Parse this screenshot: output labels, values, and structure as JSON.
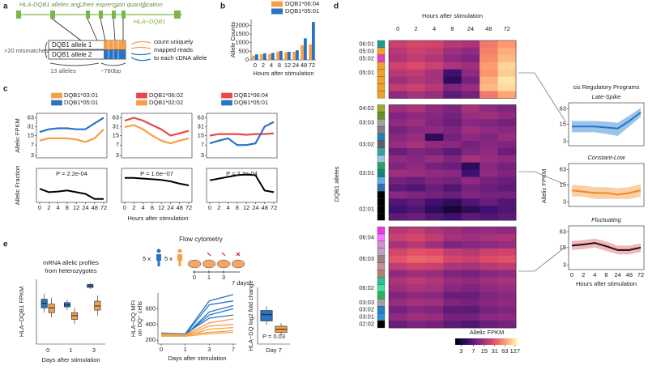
{
  "panel_labels": [
    "a",
    "b",
    "c",
    "d",
    "e"
  ],
  "panel_a": {
    "title": "HLA-DQB1 alleles and their expression quantification",
    "gene_label": "HLA−DQB1",
    "allele_1": "DQB1 allele 1",
    "allele_2": "DQB1 allele 2",
    "mismatches": ">20 mismatches",
    "n_alleles": "13 alleles",
    "length": "~780bp",
    "count_lines": [
      "count uniquely",
      "mapped reads",
      "to each cDNA allele"
    ]
  },
  "panel_c": {
    "xlabel": "Hours after stimulation"
  },
  "panel_e": {
    "flow_title": "Flow cytometry",
    "donor_counts": [
      "5 x",
      "5 x"
    ],
    "timeline": [
      "0",
      "1",
      "3"
    ],
    "end_label": "7 days"
  },
  "chart_data": [
    {
      "type": "bar",
      "ylabel": "Allele Counts",
      "xlabel": "Hours after stimulation",
      "categories": [
        "0",
        "2",
        "4",
        "8",
        "12",
        "24",
        "48",
        "72"
      ],
      "series": [
        {
          "name": "DQB1*06:04",
          "color": "#f5a049",
          "values": [
            250,
            330,
            340,
            480,
            450,
            470,
            850,
            900
          ]
        },
        {
          "name": "DQB1*05:01",
          "color": "#2a73c3",
          "values": [
            320,
            380,
            410,
            520,
            470,
            560,
            1250,
            2200
          ]
        }
      ],
      "ylim": [
        0,
        2350
      ],
      "yticks": [
        0,
        500,
        1000,
        1500,
        2000
      ],
      "legend": "top-right"
    },
    {
      "type": "line",
      "ylabel": "Allelic FPKM",
      "log_y": true,
      "ylim": [
        2.5,
        90
      ],
      "yticks": [
        3,
        7,
        15,
        31,
        63
      ],
      "categories": [
        "0",
        "2",
        "4",
        "8",
        "12",
        "24",
        "48",
        "72"
      ],
      "series": [
        {
          "name": "DQB1*03:01",
          "color": "#f5a049",
          "values": [
            10,
            12,
            12,
            12,
            11,
            9,
            12,
            25
          ]
        },
        {
          "name": "DQB1*05:01",
          "color": "#2a73c3",
          "values": [
            20,
            25,
            27,
            27,
            25,
            25,
            40,
            63
          ]
        }
      ],
      "fraction": {
        "ylabel": "Allelic Fraction",
        "ylim": [
          0,
          1
        ],
        "values": [
          0.4,
          0.3,
          0.32,
          0.35,
          0.3,
          0.25,
          0.1,
          0.1
        ],
        "annotation": "P = 2.2e-04"
      }
    },
    {
      "type": "line",
      "log_y": true,
      "ylim": [
        2.5,
        90
      ],
      "yticks": [
        3,
        7,
        15,
        31,
        63
      ],
      "categories": [
        "0",
        "2",
        "4",
        "8",
        "12",
        "24",
        "48",
        "72"
      ],
      "series": [
        {
          "name": "DQB1*06:02",
          "color": "#e8474b",
          "values": [
            50,
            63,
            50,
            35,
            25,
            15,
            18,
            22
          ]
        },
        {
          "name": "DQB1*02:02",
          "color": "#f5a049",
          "values": [
            30,
            35,
            25,
            15,
            10,
            8,
            10,
            12
          ]
        }
      ],
      "fraction": {
        "ylim": [
          0,
          1
        ],
        "values": [
          0.72,
          0.72,
          0.7,
          0.68,
          0.66,
          0.62,
          0.55,
          0.5
        ],
        "annotation": "P = 1.6e−07"
      }
    },
    {
      "type": "line",
      "log_y": true,
      "ylim": [
        2.5,
        90
      ],
      "yticks": [
        3,
        7,
        15,
        31,
        63
      ],
      "categories": [
        "0",
        "2",
        "4",
        "8",
        "12",
        "24",
        "48",
        "72"
      ],
      "series": [
        {
          "name": "DQB1*06:04",
          "color": "#e8474b",
          "values": [
            15,
            17,
            17,
            17,
            16,
            17,
            17,
            18
          ]
        },
        {
          "name": "DQB1*05:01",
          "color": "#2a73c3",
          "values": [
            8,
            10,
            12,
            7,
            7,
            8,
            31,
            45
          ]
        }
      ],
      "fraction": {
        "ylim": [
          0,
          1
        ],
        "values": [
          0.65,
          0.7,
          0.75,
          0.8,
          0.82,
          0.8,
          0.35,
          0.3
        ],
        "annotation": "P = 2.3e-04"
      }
    },
    {
      "type": "heatmap",
      "xlabel": "Hours after stimulation",
      "ylabel": "DQB1 alleles",
      "columns": [
        "0",
        "2",
        "4",
        "8",
        "24",
        "48",
        "72"
      ],
      "colorbar": {
        "label": "Allelic FPKM",
        "ticks": [
          3,
          7,
          15,
          31,
          63,
          127
        ],
        "lim": [
          2,
          160
        ],
        "log": true,
        "colors": [
          "#000004",
          "#3b0f70",
          "#8c2981",
          "#de4968",
          "#fe9f6d",
          "#fcfdbf"
        ]
      },
      "blocks": [
        {
          "row_labels": [
            "06:01",
            "05:03",
            "05:02",
            null,
            "05:01",
            null,
            null,
            null
          ],
          "row_colors": [
            "#1a9e8f",
            "#f0a030",
            "#e040c0",
            "#f0a030",
            "#f0a030",
            "#f0a030",
            "#f0a030",
            "#f0a030"
          ],
          "z": [
            [
              22,
              26,
              24,
              18,
              16,
              45,
              63
            ],
            [
              18,
              22,
              20,
              14,
              12,
              50,
              75
            ],
            [
              16,
              20,
              17,
              12,
              10,
              55,
              85
            ],
            [
              24,
              27,
              22,
              16,
              14,
              65,
              110
            ],
            [
              18,
              20,
              15,
              5,
              12,
              60,
              100
            ],
            [
              14,
              17,
              15,
              4,
              9,
              75,
              127
            ],
            [
              20,
              23,
              18,
              10,
              13,
              85,
              115
            ],
            [
              12,
              15,
              13,
              7,
              9,
              45,
              70
            ]
          ]
        },
        {
          "row_labels": [
            "04:02",
            null,
            "03:03",
            null,
            null,
            "03:02",
            null,
            null,
            null,
            "03:01",
            null,
            null,
            null,
            null,
            "02:01",
            null
          ],
          "row_colors": [
            "#9aa830",
            "#6b8e23",
            "#a0a0a0",
            "#808080",
            "#2080c0",
            "#606060",
            "#3aa0a0",
            "#90c8e0",
            "#2aa060",
            "#1a8080",
            "#5ab0e0",
            "#3070b0",
            "#000000",
            "#000000",
            "#000000",
            "#000000"
          ],
          "z": [
            [
              14,
              16,
              12,
              10,
              15,
              12,
              10
            ],
            [
              10,
              12,
              11,
              9,
              13,
              14,
              12
            ],
            [
              12,
              14,
              10,
              8,
              11,
              10,
              9
            ],
            [
              9,
              11,
              12,
              10,
              14,
              12,
              11
            ],
            [
              11,
              13,
              4,
              9,
              12,
              10,
              13
            ],
            [
              13,
              15,
              12,
              11,
              9,
              11,
              10
            ],
            [
              8,
              10,
              9,
              7,
              10,
              12,
              8
            ],
            [
              12,
              11,
              13,
              10,
              15,
              13,
              12
            ],
            [
              10,
              12,
              9,
              8,
              4,
              11,
              9
            ],
            [
              14,
              13,
              12,
              11,
              5,
              12,
              10
            ],
            [
              9,
              8,
              10,
              9,
              12,
              9,
              8
            ],
            [
              7,
              6,
              8,
              6,
              9,
              8,
              7
            ],
            [
              11,
              10,
              9,
              8,
              10,
              9,
              9
            ],
            [
              6,
              7,
              5,
              4,
              6,
              8,
              6
            ],
            [
              5,
              6,
              4,
              3,
              4,
              5,
              6
            ],
            [
              7,
              8,
              6,
              5,
              7,
              6,
              7
            ]
          ]
        },
        {
          "row_labels": [
            null,
            "06:04",
            null,
            null,
            "06:03",
            null,
            null,
            null,
            "06:02",
            null,
            "03:03",
            "03:02",
            "03:01",
            "02:02"
          ],
          "row_colors": [
            "#e040e0",
            "#ff70ff",
            "#d090d0",
            "#c0a0c0",
            "#a08080",
            "#c09090",
            "#b08070",
            "#30c090",
            "#40e0a0",
            "#30b060",
            "#a0a0a0",
            "#2080c0",
            "#3090d0",
            "#000000"
          ],
          "z": [
            [
              18,
              20,
              16,
              14,
              12,
              13,
              12
            ],
            [
              22,
              25,
              20,
              15,
              14,
              15,
              16
            ],
            [
              15,
              18,
              14,
              10,
              11,
              12,
              13
            ],
            [
              25,
              30,
              28,
              20,
              18,
              22,
              24
            ],
            [
              31,
              38,
              35,
              25,
              22,
              28,
              30
            ],
            [
              20,
              24,
              22,
              16,
              15,
              18,
              20
            ],
            [
              12,
              14,
              13,
              10,
              9,
              11,
              12
            ],
            [
              16,
              19,
              17,
              13,
              12,
              14,
              15
            ],
            [
              14,
              16,
              15,
              11,
              10,
              12,
              13
            ],
            [
              10,
              12,
              11,
              8,
              8,
              10,
              11
            ],
            [
              13,
              15,
              14,
              10,
              9,
              11,
              12
            ],
            [
              9,
              11,
              10,
              7,
              7,
              9,
              10
            ],
            [
              12,
              14,
              13,
              9,
              9,
              11,
              12
            ],
            [
              8,
              10,
              9,
              7,
              6,
              8,
              9
            ]
          ]
        }
      ]
    },
    {
      "type": "ribbon",
      "title": "cis Regulatory Programs",
      "ylabel": "Allelic FPKM",
      "xlabel": "Hours after stimulation",
      "categories": [
        "0",
        "2",
        "4",
        "8",
        "24",
        "48",
        "72"
      ],
      "log_y": true,
      "ylim": [
        2,
        110
      ],
      "panels": [
        {
          "title": "Late-Spike",
          "color": "#2a73c3",
          "band_color": "#9cc3ea",
          "yticks": [
            3,
            15,
            63
          ],
          "values": [
            12,
            12,
            12,
            11,
            10,
            20,
            45
          ],
          "lower": [
            7,
            7,
            7,
            6,
            5,
            12,
            30
          ],
          "upper": [
            20,
            20,
            20,
            19,
            17,
            33,
            68
          ]
        },
        {
          "title": "Constant-Low",
          "color": "#f08a24",
          "band_color": "#f9cfa6",
          "yticks": [
            3,
            15,
            63
          ],
          "values": [
            9,
            8,
            7,
            7,
            6,
            7,
            9
          ],
          "lower": [
            5,
            5,
            4,
            4,
            4,
            4,
            5
          ],
          "upper": [
            15,
            14,
            12,
            12,
            11,
            12,
            16
          ]
        },
        {
          "title": "Fluctuating",
          "color": "#111111",
          "band_color": "#f4b6bc",
          "yticks": [
            3,
            15,
            63
          ],
          "values": [
            18,
            20,
            23,
            17,
            12,
            12,
            15
          ],
          "lower": [
            12,
            13,
            15,
            11,
            8,
            8,
            10
          ],
          "upper": [
            27,
            30,
            34,
            26,
            18,
            18,
            22
          ]
        }
      ]
    },
    {
      "type": "box",
      "title": [
        "mRNA allelic profiles",
        "from heterozygotes"
      ],
      "ylabel": "HLA−DQB1 FPKM",
      "xlabel": "Days after stimulation",
      "categories": [
        "0",
        "1",
        "3"
      ],
      "log_y": true,
      "ylim": [
        1.8,
        90
      ],
      "series": [
        {
          "color": "#2a73c3",
          "boxes": [
            [
              12,
              16,
              21,
              27,
              38
            ],
            [
              14,
              17,
              19,
              22,
              26
            ],
            [
              50,
              55,
              60,
              66,
              72
            ]
          ]
        },
        {
          "color": "#f5a049",
          "boxes": [
            [
              9,
              12,
              16,
              20,
              30
            ],
            [
              6,
              8,
              10,
              12,
              16
            ],
            [
              10,
              14,
              18,
              24,
              34
            ]
          ]
        }
      ]
    },
    {
      "type": "line",
      "ylabel": [
        "HLA−DQ MFI",
        "on DQ⁺ cells"
      ],
      "xlabel": "Days after stimulation",
      "categories": [
        "0",
        "1",
        "3",
        "7"
      ],
      "ylim": [
        150,
        800
      ],
      "yticks": [
        200,
        400,
        600
      ],
      "series": [
        {
          "color": "#2a73c3",
          "values": [
            270,
            280,
            700,
            780
          ]
        },
        {
          "color": "#2a73c3",
          "values": [
            260,
            270,
            650,
            700
          ]
        },
        {
          "color": "#2a73c3",
          "values": [
            280,
            260,
            560,
            640
          ]
        },
        {
          "color": "#2a73c3",
          "values": [
            250,
            270,
            520,
            600
          ]
        },
        {
          "color": "#2a73c3",
          "values": [
            290,
            280,
            480,
            520
          ]
        },
        {
          "color": "#f5a049",
          "values": [
            260,
            270,
            420,
            470
          ]
        },
        {
          "color": "#f5a049",
          "values": [
            270,
            260,
            380,
            400
          ]
        },
        {
          "color": "#f5a049",
          "values": [
            250,
            250,
            340,
            360
          ]
        },
        {
          "color": "#f5a049",
          "values": [
            280,
            270,
            300,
            320
          ]
        },
        {
          "color": "#f5a049",
          "values": [
            260,
            250,
            280,
            300
          ]
        }
      ]
    },
    {
      "type": "box",
      "ylabel": "HLA−DQ log2 fold change",
      "xlabel": "Day 7",
      "annotation": "P = 0.03",
      "ylim": [
        1.5,
        4.2
      ],
      "series": [
        {
          "color": "#2a73c3",
          "boxes": [
            [
              2.4,
              2.6,
              2.9,
              3.1,
              3.3
            ]
          ]
        },
        {
          "color": "#f5a049",
          "boxes": [
            [
              1.9,
              2.05,
              2.2,
              2.35,
              2.5
            ]
          ]
        }
      ]
    }
  ]
}
